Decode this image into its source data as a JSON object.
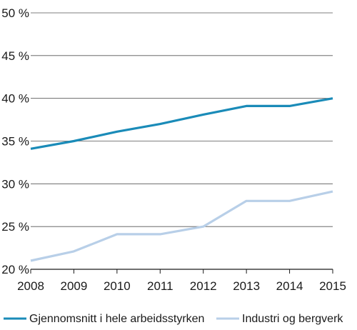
{
  "chart_data": {
    "type": "line",
    "title": "",
    "xlabel": "",
    "ylabel": "",
    "x": [
      2008,
      2009,
      2010,
      2011,
      2012,
      2013,
      2014,
      2015
    ],
    "x_tick_labels": [
      "2008",
      "2009",
      "2010",
      "2011",
      "2012",
      "2013",
      "2014",
      "2015"
    ],
    "ylim": [
      20,
      50
    ],
    "y_ticks": [
      20,
      25,
      30,
      35,
      40,
      45,
      50
    ],
    "y_tick_labels": [
      "20 %",
      "25 %",
      "30 %",
      "35 %",
      "40 %",
      "45 %",
      "50 %"
    ],
    "grid": "horizontal",
    "legend_position": "bottom",
    "series": [
      {
        "name": "Gjennomsnitt i hele arbeidsstyrken",
        "color": "#1a8bb8",
        "values": [
          34.1,
          35.0,
          36.1,
          37.0,
          38.1,
          39.1,
          39.1,
          40.0
        ]
      },
      {
        "name": "Industri og bergverk",
        "color": "#b8cfe8",
        "values": [
          21.0,
          22.1,
          24.1,
          24.1,
          25.0,
          28.0,
          28.0,
          29.1
        ]
      }
    ]
  }
}
